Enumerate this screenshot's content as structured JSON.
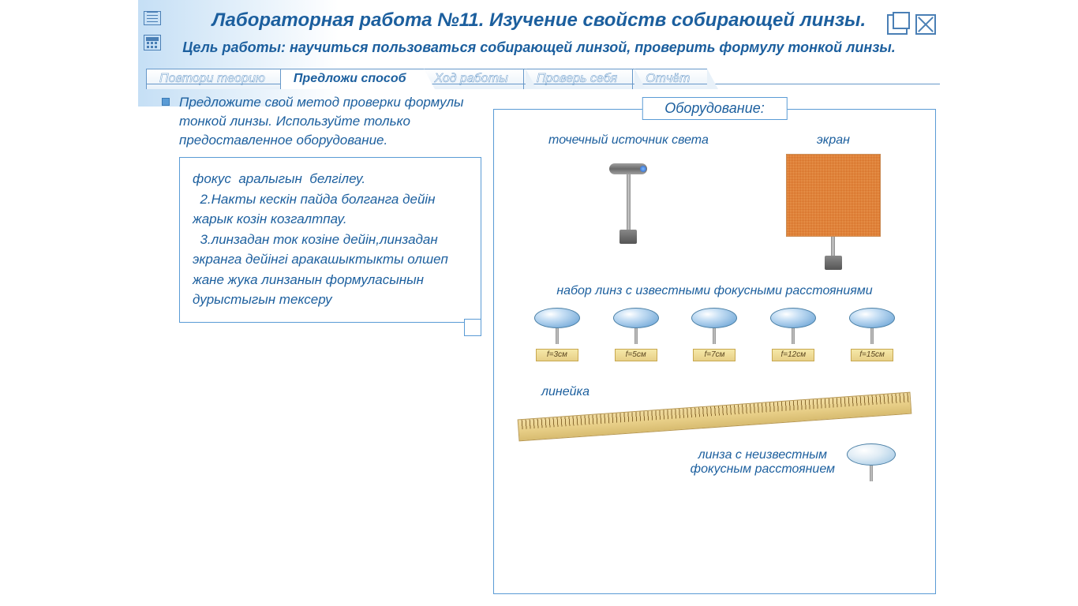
{
  "header": {
    "title": "Лабораторная работа №11.  Изучение свойств собирающей линзы.",
    "subtitle": "Цель работы: научиться пользоваться собирающей линзой, проверить формулу тонкой линзы."
  },
  "tabs": [
    {
      "label": "Повтори теорию",
      "active": false
    },
    {
      "label": "Предложи способ",
      "active": true
    },
    {
      "label": "Ход работы",
      "active": false
    },
    {
      "label": "Проверь себя",
      "active": false
    },
    {
      "label": "Отчёт",
      "active": false
    }
  ],
  "instruction": "Предложите свой метод проверки формулы тонкой линзы. Используйте  только предоставленное  оборудование.",
  "answer": "фокус  аралыгын  белгілеу.\n  2.Накты кескін пайда болганга дейін жарык козін козгалтпау.\n  3.линзадан ток козіне дейін,линзадан экранга дейінгі аракашыктыкты олшеп жане жука линзанын формуласынын дурыстыгын тексеру",
  "equipment": {
    "title": "Оборудование:",
    "light_source": "точечный источник света",
    "screen": "экран",
    "lens_set": "набор линз с известными фокусными расстояниями",
    "lenses": [
      {
        "label": "f=3см"
      },
      {
        "label": "f=5см"
      },
      {
        "label": "f=7см"
      },
      {
        "label": "f=12см"
      },
      {
        "label": "f=15см"
      }
    ],
    "ruler": "линейка",
    "unknown_lens": "линза с неизвестным\nфокусным расстоянием"
  },
  "colors": {
    "primary": "#1c5f9e",
    "border": "#5a9bd5",
    "tab_inactive": "#8fb8dd"
  }
}
